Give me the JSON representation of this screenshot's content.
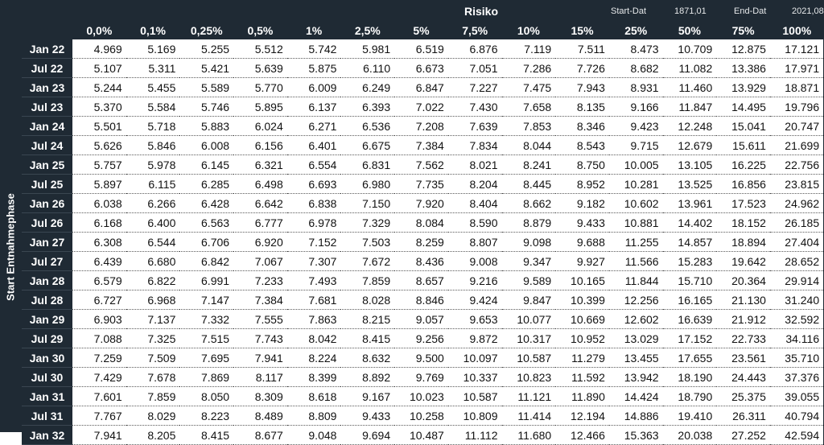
{
  "header": {
    "title": "Risiko",
    "start_label": "Start-Dat",
    "start_value": "1871,01",
    "end_label": "End-Dat",
    "end_value": "2021,08"
  },
  "side_label": "Start Entnahmephase",
  "columns": [
    "0,0%",
    "0,1%",
    "0,25%",
    "0,5%",
    "1%",
    "2,5%",
    "5%",
    "7,5%",
    "10%",
    "15%",
    "25%",
    "50%",
    "75%",
    "100%"
  ],
  "rows": [
    {
      "label": "Jan 22",
      "values": [
        "4.969",
        "5.169",
        "5.255",
        "5.512",
        "5.742",
        "5.981",
        "6.519",
        "6.876",
        "7.119",
        "7.511",
        "8.473",
        "10.709",
        "12.875",
        "17.121"
      ]
    },
    {
      "label": "Jul 22",
      "values": [
        "5.107",
        "5.311",
        "5.421",
        "5.639",
        "5.875",
        "6.110",
        "6.673",
        "7.051",
        "7.286",
        "7.726",
        "8.682",
        "11.082",
        "13.386",
        "17.971"
      ]
    },
    {
      "label": "Jan 23",
      "values": [
        "5.244",
        "5.455",
        "5.589",
        "5.770",
        "6.009",
        "6.249",
        "6.847",
        "7.227",
        "7.475",
        "7.943",
        "8.931",
        "11.460",
        "13.929",
        "18.871"
      ]
    },
    {
      "label": "Jul 23",
      "values": [
        "5.370",
        "5.584",
        "5.746",
        "5.895",
        "6.137",
        "6.393",
        "7.022",
        "7.430",
        "7.658",
        "8.135",
        "9.166",
        "11.847",
        "14.495",
        "19.796"
      ]
    },
    {
      "label": "Jan 24",
      "values": [
        "5.501",
        "5.718",
        "5.883",
        "6.024",
        "6.271",
        "6.536",
        "7.208",
        "7.639",
        "7.853",
        "8.346",
        "9.423",
        "12.248",
        "15.041",
        "20.747"
      ]
    },
    {
      "label": "Jul 24",
      "values": [
        "5.626",
        "5.846",
        "6.008",
        "6.156",
        "6.401",
        "6.675",
        "7.384",
        "7.834",
        "8.044",
        "8.543",
        "9.715",
        "12.679",
        "15.611",
        "21.699"
      ]
    },
    {
      "label": "Jan 25",
      "values": [
        "5.757",
        "5.978",
        "6.145",
        "6.321",
        "6.554",
        "6.831",
        "7.562",
        "8.021",
        "8.241",
        "8.750",
        "10.005",
        "13.105",
        "16.225",
        "22.756"
      ]
    },
    {
      "label": "Jul 25",
      "values": [
        "5.897",
        "6.115",
        "6.285",
        "6.498",
        "6.693",
        "6.980",
        "7.735",
        "8.204",
        "8.445",
        "8.952",
        "10.281",
        "13.525",
        "16.856",
        "23.815"
      ]
    },
    {
      "label": "Jan 26",
      "values": [
        "6.038",
        "6.266",
        "6.428",
        "6.642",
        "6.838",
        "7.150",
        "7.920",
        "8.404",
        "8.662",
        "9.182",
        "10.602",
        "13.961",
        "17.523",
        "24.962"
      ]
    },
    {
      "label": "Jul 26",
      "values": [
        "6.168",
        "6.400",
        "6.563",
        "6.777",
        "6.978",
        "7.329",
        "8.084",
        "8.590",
        "8.879",
        "9.433",
        "10.881",
        "14.402",
        "18.152",
        "26.185"
      ]
    },
    {
      "label": "Jan 27",
      "values": [
        "6.308",
        "6.544",
        "6.706",
        "6.920",
        "7.152",
        "7.503",
        "8.259",
        "8.807",
        "9.098",
        "9.688",
        "11.255",
        "14.857",
        "18.894",
        "27.404"
      ]
    },
    {
      "label": "Jul 27",
      "values": [
        "6.439",
        "6.680",
        "6.842",
        "7.067",
        "7.307",
        "7.672",
        "8.436",
        "9.008",
        "9.347",
        "9.927",
        "11.566",
        "15.283",
        "19.642",
        "28.652"
      ]
    },
    {
      "label": "Jan 28",
      "values": [
        "6.579",
        "6.822",
        "6.991",
        "7.233",
        "7.493",
        "7.859",
        "8.657",
        "9.216",
        "9.589",
        "10.165",
        "11.844",
        "15.710",
        "20.364",
        "29.914"
      ]
    },
    {
      "label": "Jul 28",
      "values": [
        "6.727",
        "6.968",
        "7.147",
        "7.384",
        "7.681",
        "8.028",
        "8.846",
        "9.424",
        "9.847",
        "10.399",
        "12.256",
        "16.165",
        "21.130",
        "31.240"
      ]
    },
    {
      "label": "Jan 29",
      "values": [
        "6.903",
        "7.137",
        "7.332",
        "7.555",
        "7.863",
        "8.215",
        "9.057",
        "9.653",
        "10.077",
        "10.669",
        "12.602",
        "16.639",
        "21.912",
        "32.592"
      ]
    },
    {
      "label": "Jul 29",
      "values": [
        "7.088",
        "7.325",
        "7.515",
        "7.743",
        "8.042",
        "8.415",
        "9.256",
        "9.872",
        "10.317",
        "10.952",
        "13.029",
        "17.152",
        "22.733",
        "34.116"
      ]
    },
    {
      "label": "Jan 30",
      "values": [
        "7.259",
        "7.509",
        "7.695",
        "7.941",
        "8.224",
        "8.632",
        "9.500",
        "10.097",
        "10.587",
        "11.279",
        "13.455",
        "17.655",
        "23.561",
        "35.710"
      ]
    },
    {
      "label": "Jul 30",
      "values": [
        "7.429",
        "7.678",
        "7.869",
        "8.117",
        "8.399",
        "8.892",
        "9.769",
        "10.337",
        "10.823",
        "11.592",
        "13.942",
        "18.190",
        "24.443",
        "37.376"
      ]
    },
    {
      "label": "Jan 31",
      "values": [
        "7.601",
        "7.859",
        "8.050",
        "8.309",
        "8.618",
        "9.167",
        "10.023",
        "10.587",
        "11.121",
        "11.890",
        "14.424",
        "18.790",
        "25.375",
        "39.055"
      ]
    },
    {
      "label": "Jul 31",
      "values": [
        "7.767",
        "8.029",
        "8.223",
        "8.489",
        "8.809",
        "9.433",
        "10.258",
        "10.809",
        "11.414",
        "12.194",
        "14.886",
        "19.410",
        "26.311",
        "40.794"
      ]
    },
    {
      "label": "Jan 32",
      "values": [
        "7.941",
        "8.205",
        "8.415",
        "8.677",
        "9.048",
        "9.694",
        "10.487",
        "11.112",
        "11.680",
        "12.466",
        "15.363",
        "20.038",
        "27.252",
        "42.594"
      ]
    }
  ],
  "colors": {
    "header_bg": "#1f2a34",
    "header_text": "#ffffff",
    "cell_text": "#111111"
  }
}
